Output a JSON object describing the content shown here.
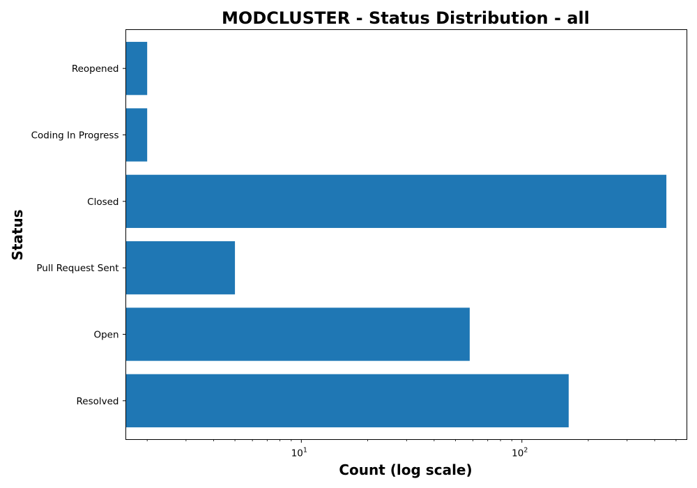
{
  "chart_data": {
    "type": "bar",
    "orientation": "horizontal",
    "title": "MODCLUSTER - Status Distribution - all",
    "xlabel": "Count (log scale)",
    "ylabel": "Status",
    "x_scale": "log",
    "xlim": [
      1.6,
      560
    ],
    "x_ticks": [
      {
        "value": 10,
        "base": "10",
        "exp": "1"
      },
      {
        "value": 100,
        "base": "10",
        "exp": "2"
      }
    ],
    "categories": [
      "Resolved",
      "Open",
      "Pull Request Sent",
      "Closed",
      "Coding In Progress",
      "Reopened"
    ],
    "values": [
      163,
      58,
      5,
      452,
      2,
      2
    ],
    "color": "#1f77b4",
    "grid": false,
    "legend": "none"
  }
}
